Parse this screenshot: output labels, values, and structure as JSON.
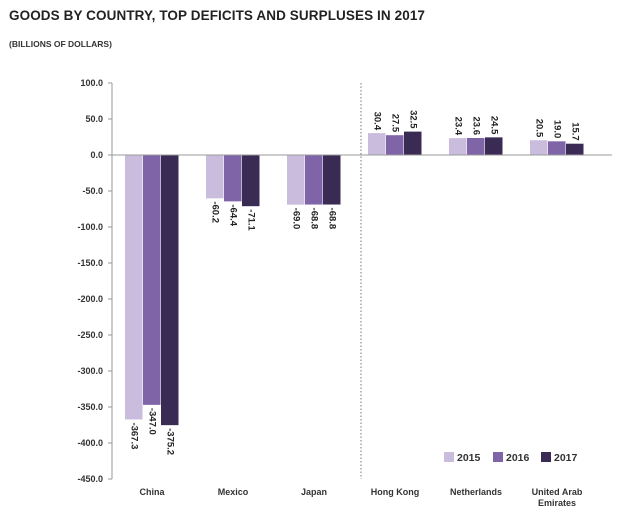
{
  "chart_data": {
    "type": "bar",
    "title": "GOODS BY COUNTRY, TOP DEFICITS AND SURPLUSES IN 2017",
    "subtitle": "(BILLIONS OF DOLLARS)",
    "xlabel": "",
    "ylabel": "",
    "ylim": [
      -450,
      100
    ],
    "yticks": [
      100,
      50,
      0,
      -50,
      -100,
      -150,
      -200,
      -250,
      -300,
      -350,
      -400,
      -450
    ],
    "ytick_labels": [
      "100.0",
      "50.0",
      "0.0",
      "-50.0",
      "-100.0",
      "-150.0",
      "-200.0",
      "-250.0",
      "-300.0",
      "-350.0",
      "-400.0",
      "-450.0"
    ],
    "categories": [
      "China",
      "Mexico",
      "Japan",
      "Hong Kong",
      "Netherlands",
      "United Arab Emirates"
    ],
    "category_label_lines": [
      [
        "China"
      ],
      [
        "Mexico"
      ],
      [
        "Japan"
      ],
      [
        "Hong Kong"
      ],
      [
        "Netherlands"
      ],
      [
        "United Arab",
        "Emirates"
      ]
    ],
    "series": [
      {
        "name": "2015",
        "color": "#c9bcdc",
        "values": [
          -367.3,
          -60.2,
          -69.0,
          30.4,
          23.4,
          20.5
        ],
        "labels": [
          "-367.3",
          "-60.2",
          "-69.0",
          "30.4",
          "23.4",
          "20.5"
        ]
      },
      {
        "name": "2016",
        "color": "#7f64a8",
        "values": [
          -347.0,
          -64.4,
          -68.8,
          27.5,
          23.6,
          19.0
        ],
        "labels": [
          "-347.0",
          "-64.4",
          "-68.8",
          "27.5",
          "23.6",
          "19.0"
        ]
      },
      {
        "name": "2017",
        "color": "#3a2b55",
        "values": [
          -375.2,
          -71.1,
          -68.8,
          32.5,
          24.5,
          15.7
        ],
        "labels": [
          "-375.2",
          "-71.1",
          "-68.8",
          "32.5",
          "24.5",
          "15.7"
        ]
      }
    ],
    "separator_after_category": 2,
    "legend": {
      "position": "bottom-right"
    },
    "grid": false
  }
}
